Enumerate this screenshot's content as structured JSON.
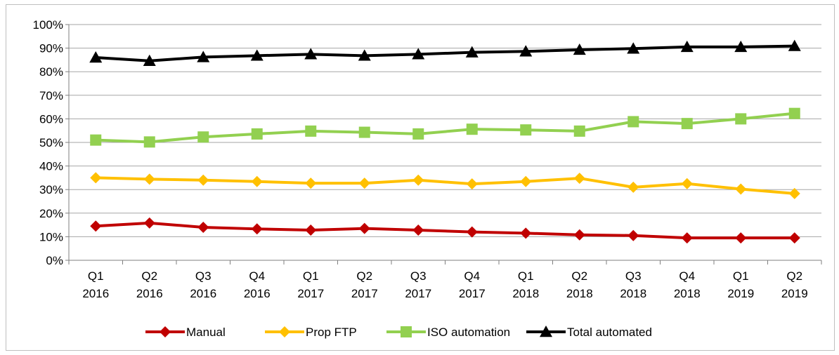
{
  "chart_data": {
    "type": "line",
    "title": "",
    "xlabel": "",
    "ylabel": "",
    "categories": [
      [
        "Q1",
        "2016"
      ],
      [
        "Q2",
        "2016"
      ],
      [
        "Q3",
        "2016"
      ],
      [
        "Q4",
        "2016"
      ],
      [
        "Q1",
        "2017"
      ],
      [
        "Q2",
        "2017"
      ],
      [
        "Q3",
        "2017"
      ],
      [
        "Q4",
        "2017"
      ],
      [
        "Q1",
        "2018"
      ],
      [
        "Q2",
        "2018"
      ],
      [
        "Q3",
        "2018"
      ],
      [
        "Q4",
        "2018"
      ],
      [
        "Q1",
        "2019"
      ],
      [
        "Q2",
        "2019"
      ]
    ],
    "ylim": [
      0,
      100
    ],
    "y_ticks": [
      "0%",
      "10%",
      "20%",
      "30%",
      "40%",
      "50%",
      "60%",
      "70%",
      "80%",
      "90%",
      "100%"
    ],
    "grid": true,
    "legend_position": "bottom",
    "series": [
      {
        "name": "Manual",
        "color": "#c00000",
        "marker": "diamond",
        "values": [
          14.5,
          15.8,
          14.0,
          13.3,
          12.8,
          13.5,
          12.8,
          12.0,
          11.5,
          10.8,
          10.5,
          9.5,
          9.5,
          9.5
        ]
      },
      {
        "name": "Prop FTP",
        "color": "#ffc000",
        "marker": "diamond",
        "values": [
          35.0,
          34.4,
          34.0,
          33.4,
          32.7,
          32.7,
          34.0,
          32.4,
          33.4,
          34.8,
          31.0,
          32.5,
          30.2,
          28.3
        ]
      },
      {
        "name": "ISO automation",
        "color": "#92d050",
        "marker": "square",
        "values": [
          51.0,
          50.2,
          52.3,
          53.6,
          54.8,
          54.3,
          53.6,
          55.6,
          55.3,
          54.8,
          58.8,
          58.0,
          60.0,
          62.3
        ]
      },
      {
        "name": "Total automated",
        "color": "#000000",
        "marker": "triangle",
        "values": [
          86.0,
          84.6,
          86.2,
          86.8,
          87.4,
          86.8,
          87.4,
          88.2,
          88.6,
          89.3,
          89.8,
          90.5,
          90.5,
          90.9
        ]
      }
    ]
  }
}
